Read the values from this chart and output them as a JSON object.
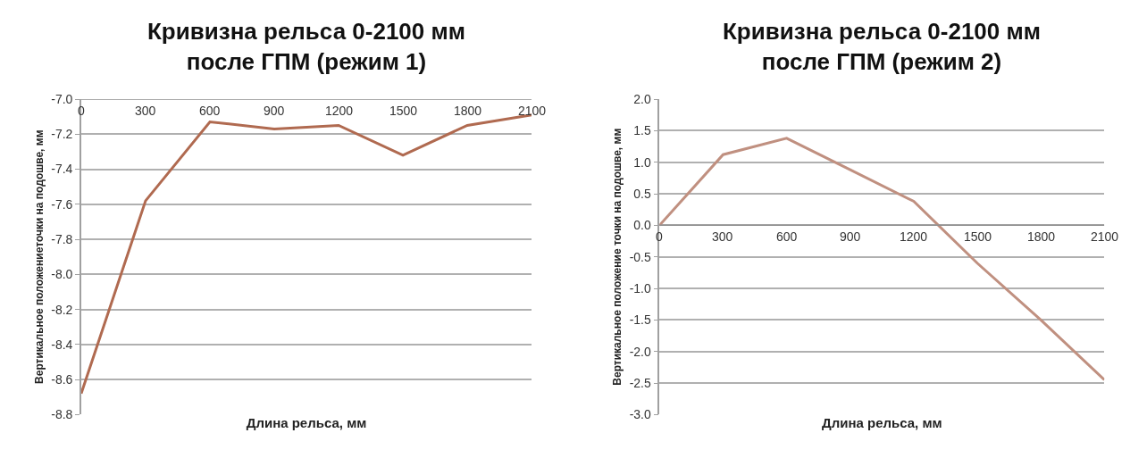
{
  "chart_data": [
    {
      "type": "line",
      "title": "Кривизна рельса 0-2100 мм\nпосле ГПМ (режим 1)",
      "xlabel": "Длина рельса, мм",
      "ylabel": "Вертикальное положениеточки на подошве, мм",
      "x": [
        0,
        300,
        600,
        900,
        1200,
        1500,
        1800,
        2100
      ],
      "series": [
        {
          "color": "#b06a50",
          "values": [
            -8.68,
            -7.58,
            -7.13,
            -7.17,
            -7.15,
            -7.32,
            -7.15,
            -7.09
          ]
        }
      ],
      "xlim": [
        0,
        2100
      ],
      "xticks": [
        0,
        300,
        600,
        900,
        1200,
        1500,
        1800,
        2100
      ],
      "ylim": [
        -8.8,
        -7.0
      ],
      "yticks": [
        {
          "value": -8.8,
          "label": "-8.8"
        },
        {
          "value": -8.6,
          "label": "-8.6"
        },
        {
          "value": -8.4,
          "label": "-8.4"
        },
        {
          "value": -8.2,
          "label": "-8.2"
        },
        {
          "value": -8.0,
          "label": "-8.0"
        },
        {
          "value": -7.8,
          "label": "-7.8"
        },
        {
          "value": -7.6,
          "label": "-7.6"
        },
        {
          "value": -7.4,
          "label": "-7.4"
        },
        {
          "value": -7.2,
          "label": "-7.2"
        },
        {
          "value": -7.0,
          "label": "-7.0"
        }
      ],
      "grid": "y",
      "marker": "none",
      "line_style": "solid"
    },
    {
      "type": "line",
      "title": "Кривизна рельса 0-2100 мм\nпосле ГПМ (режим 2)",
      "xlabel": "Длина рельса, мм",
      "ylabel": "Вертикальное положение точки на подошве, мм",
      "x": [
        0,
        300,
        600,
        900,
        1200,
        1500,
        1800,
        2100
      ],
      "series": [
        {
          "color": "#c09080",
          "values": [
            0.0,
            1.12,
            1.38,
            0.88,
            0.38,
            -0.6,
            -1.5,
            -2.45
          ]
        }
      ],
      "xlim": [
        0,
        2100
      ],
      "xticks": [
        0,
        300,
        600,
        900,
        1200,
        1500,
        1800,
        2100
      ],
      "ylim": [
        -3.0,
        2.0
      ],
      "yticks": [
        {
          "value": -3.0,
          "label": "-3.0"
        },
        {
          "value": -2.5,
          "label": "-2.5"
        },
        {
          "value": -2.0,
          "label": "-2.0"
        },
        {
          "value": -1.5,
          "label": "-1.5"
        },
        {
          "value": -1.0,
          "label": "-1.0"
        },
        {
          "value": -0.5,
          "label": "-0.5"
        },
        {
          "value": 0.0,
          "label": "0.0"
        },
        {
          "value": 0.5,
          "label": "0.5"
        },
        {
          "value": 1.0,
          "label": "1.0"
        },
        {
          "value": 1.5,
          "label": "1.5"
        },
        {
          "value": 2.0,
          "label": "2.0"
        }
      ],
      "grid": "y",
      "marker": "none",
      "line_style": "solid"
    }
  ]
}
